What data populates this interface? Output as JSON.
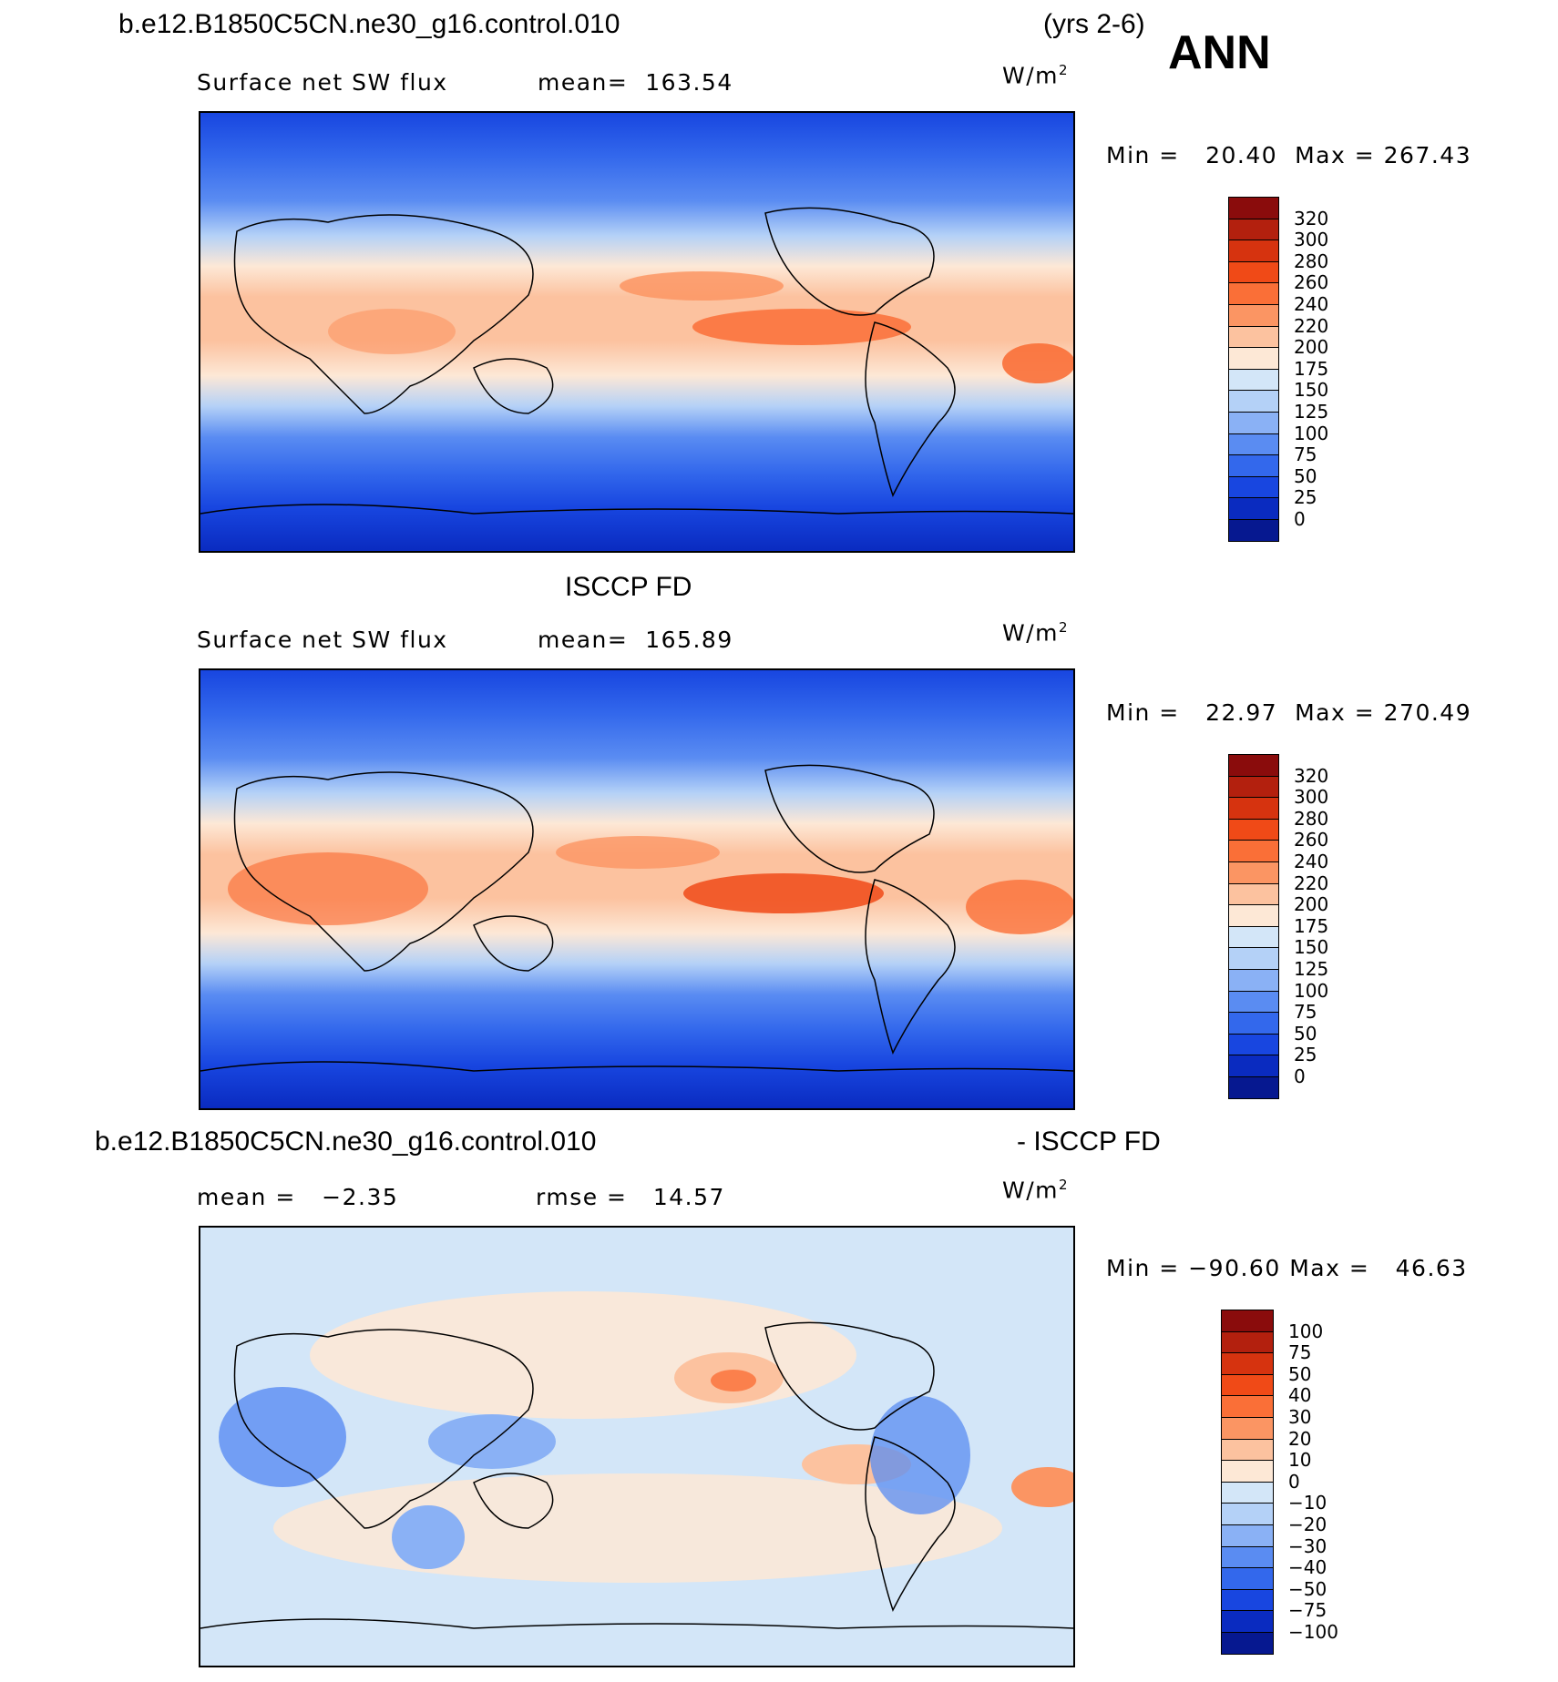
{
  "header": {
    "case_name": "b.e12.B1850C5CN.ne30_g16.control.010",
    "years": "(yrs 2-6)",
    "season": "ANN"
  },
  "panels": [
    {
      "id": "model",
      "title": "",
      "variable": "Surface net SW flux",
      "stat_label": "mean=",
      "stat_value": "163.54",
      "units": "W/m",
      "units_exp": "2",
      "min_label": "Min =",
      "min_value": "20.40",
      "max_label": "Max =",
      "max_value": "267.43"
    },
    {
      "id": "obs",
      "title": "ISCCP FD",
      "variable": "Surface net SW flux",
      "stat_label": "mean=",
      "stat_value": "165.89",
      "units": "W/m",
      "units_exp": "2",
      "min_label": "Min =",
      "min_value": "22.97",
      "max_label": "Max =",
      "max_value": "270.49"
    },
    {
      "id": "diff",
      "title_left": "b.e12.B1850C5CN.ne30_g16.control.010",
      "title_right": "- ISCCP FD",
      "mean_label": "mean =",
      "mean_value": "−2.35",
      "rmse_label": "rmse =",
      "rmse_value": "14.57",
      "units": "W/m",
      "units_exp": "2",
      "min_label": "Min =",
      "min_value": "−90.60",
      "max_label": "Max =",
      "max_value": "46.63"
    }
  ],
  "colorbars": {
    "abs": {
      "levels": [
        "320",
        "300",
        "280",
        "260",
        "240",
        "220",
        "200",
        "175",
        "150",
        "125",
        "100",
        "75",
        "50",
        "25",
        "0"
      ],
      "colors_top_to_bottom": [
        "#8a0c0c",
        "#b3200e",
        "#d6330f",
        "#f04a17",
        "#fa6f37",
        "#fb9563",
        "#fcc29f",
        "#fde8d6",
        "#d3e6f8",
        "#b4d1f7",
        "#8ab1f5",
        "#5a8cf2",
        "#3368ec",
        "#1846e0",
        "#0a2bc0",
        "#061890"
      ]
    },
    "diff": {
      "levels": [
        "100",
        "75",
        "50",
        "40",
        "30",
        "20",
        "10",
        "0",
        "−10",
        "−20",
        "−30",
        "−40",
        "−50",
        "−75",
        "−100"
      ],
      "colors_top_to_bottom": [
        "#8a0c0c",
        "#b3200e",
        "#d6330f",
        "#f04a17",
        "#fa6f37",
        "#fb9563",
        "#fcc29f",
        "#fde8d6",
        "#d3e6f8",
        "#b4d1f7",
        "#8ab1f5",
        "#5a8cf2",
        "#3368ec",
        "#1846e0",
        "#0a2bc0",
        "#061890"
      ]
    }
  }
}
